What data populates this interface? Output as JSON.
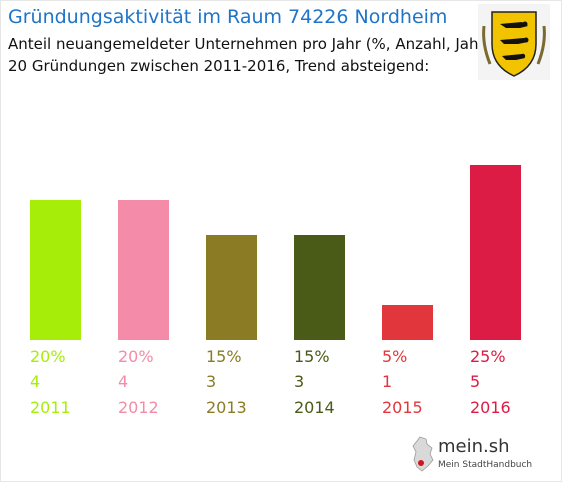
{
  "title": "Gründungsaktivität im Raum 74226 Nordheim",
  "subtitle_line1": "Anteil neuangemeldeter Unternehmen pro Jahr (%, Anzahl, Jahr)",
  "subtitle_line2": "20 Gründungen zwischen 2011-2016, Trend absteigend:",
  "logo": {
    "name": "mein.sh",
    "tagline": "Mein StadtHandbuch"
  },
  "crest_icon": "baden-wuerttemberg-coat-of-arms-icon",
  "chart_data": {
    "type": "bar",
    "categories": [
      "2011",
      "2012",
      "2013",
      "2014",
      "2015",
      "2016"
    ],
    "values": [
      20,
      20,
      15,
      15,
      5,
      25
    ],
    "percent_labels": [
      "20%",
      "20%",
      "15%",
      "15%",
      "5%",
      "25%"
    ],
    "counts": [
      "4",
      "4",
      "3",
      "3",
      "1",
      "5"
    ],
    "colors": [
      "#a6ee0a",
      "#f48ba8",
      "#8b7b24",
      "#4a5a17",
      "#e0363c",
      "#dc1c44"
    ],
    "grid": false,
    "legend": "none"
  }
}
